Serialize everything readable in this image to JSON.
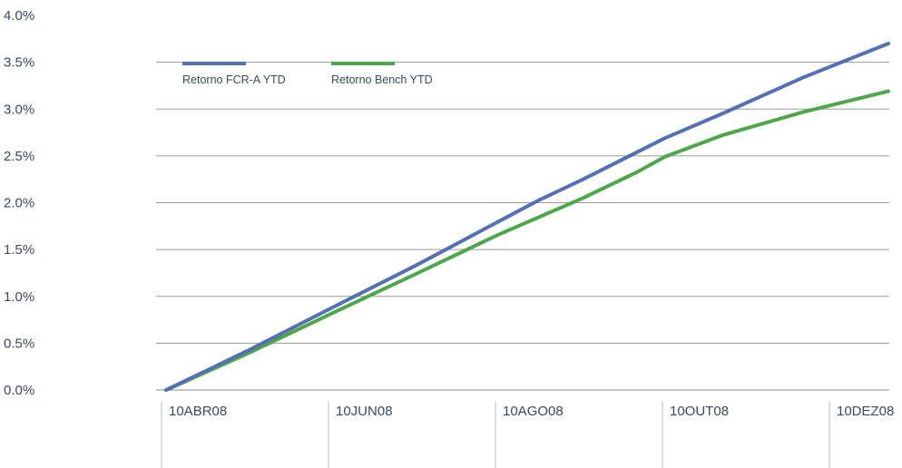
{
  "chart_data": {
    "type": "line",
    "title": "",
    "xlabel": "",
    "ylabel": "",
    "ylim": [
      0,
      4.0
    ],
    "y_ticks": [
      "4.0%",
      "3.5%",
      "3.0%",
      "2.5%",
      "2.0%",
      "1.5%",
      "1.0%",
      "0.5%",
      "0.0%"
    ],
    "y_tick_values": [
      4.0,
      3.5,
      3.0,
      2.5,
      2.0,
      1.5,
      1.0,
      0.5,
      0.0
    ],
    "x_ticks": [
      "10ABR08",
      "10JUN08",
      "10AGO08",
      "10OUT08",
      "10DEZ08"
    ],
    "x_range": [
      "2008-04-10",
      "2008-12-31"
    ],
    "grid": "horizontal",
    "legend_position": "top-left",
    "series": [
      {
        "name": "Retorno FCR-A YTD",
        "color": "#5470b3",
        "points": [
          [
            "2008-04-10",
            0.0
          ],
          [
            "2008-05-10",
            0.42
          ],
          [
            "2008-06-10",
            0.88
          ],
          [
            "2008-07-10",
            1.32
          ],
          [
            "2008-08-10",
            1.8
          ],
          [
            "2008-08-25",
            2.03
          ],
          [
            "2008-09-10",
            2.25
          ],
          [
            "2008-10-10",
            2.69
          ],
          [
            "2008-10-31",
            2.95
          ],
          [
            "2008-11-30",
            3.34
          ],
          [
            "2008-12-31",
            3.7
          ]
        ]
      },
      {
        "name": "Retorno Bench YTD",
        "color": "#4ea64a",
        "points": [
          [
            "2008-04-10",
            0.0
          ],
          [
            "2008-05-10",
            0.39
          ],
          [
            "2008-06-10",
            0.82
          ],
          [
            "2008-07-10",
            1.23
          ],
          [
            "2008-08-10",
            1.66
          ],
          [
            "2008-09-10",
            2.05
          ],
          [
            "2008-09-30",
            2.33
          ],
          [
            "2008-10-10",
            2.49
          ],
          [
            "2008-10-31",
            2.72
          ],
          [
            "2008-11-30",
            2.97
          ],
          [
            "2008-12-31",
            3.19
          ]
        ]
      }
    ]
  }
}
